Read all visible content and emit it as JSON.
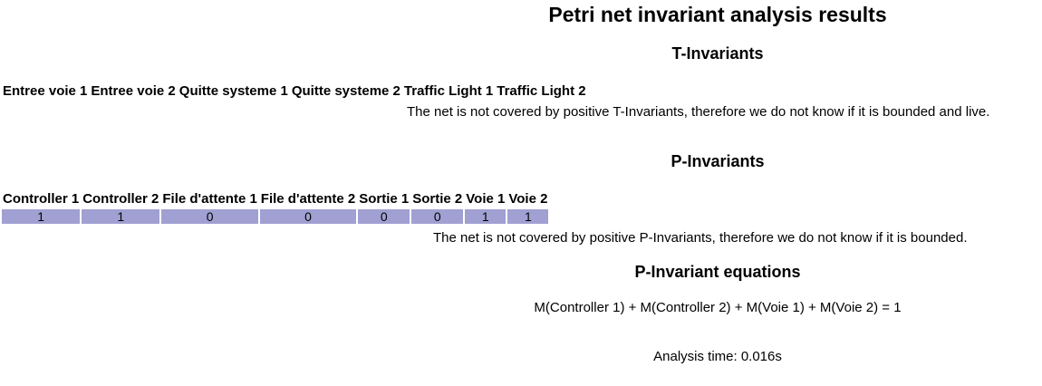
{
  "title": "Petri net invariant analysis results",
  "t_invariants": {
    "heading": "T-Invariants",
    "columns": [
      "Entree voie 1",
      "Entree voie 2",
      "Quitte systeme 1",
      "Quitte systeme 2",
      "Traffic Light 1",
      "Traffic Light 2"
    ],
    "note": "The net is not covered by positive T-Invariants, therefore we do not know if it is bounded and live."
  },
  "p_invariants": {
    "heading": "P-Invariants",
    "columns": [
      "Controller 1",
      "Controller 2",
      "File d'attente 1",
      "File d'attente 2",
      "Sortie 1",
      "Sortie 2",
      "Voie 1",
      "Voie 2"
    ],
    "rows": [
      [
        "1",
        "1",
        "0",
        "0",
        "0",
        "0",
        "1",
        "1"
      ]
    ],
    "note": "The net is not covered by positive P-Invariants, therefore we do not know if it is bounded."
  },
  "equations": {
    "heading": "P-Invariant equations",
    "items": [
      "M(Controller 1) + M(Controller 2) + M(Voie 1) + M(Voie 2) = 1"
    ]
  },
  "analysis_time": "Analysis time: 0.016s",
  "colors": {
    "cell_background": "#a0a0d2"
  }
}
